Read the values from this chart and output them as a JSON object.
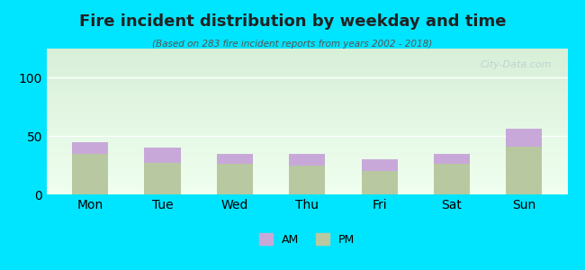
{
  "title": "Fire incident distribution by weekday and time",
  "subtitle": "(Based on 283 fire incident reports from years 2002 - 2018)",
  "categories": [
    "Mon",
    "Tue",
    "Wed",
    "Thu",
    "Fri",
    "Sat",
    "Sun"
  ],
  "pm_values": [
    35,
    27,
    26,
    25,
    20,
    26,
    41
  ],
  "am_values": [
    10,
    13,
    9,
    10,
    10,
    9,
    15
  ],
  "am_color": "#c8a8d8",
  "pm_color": "#b8c8a0",
  "background_top": "#e8f5e8",
  "background_bottom": "#f5fff5",
  "ylim": [
    0,
    125
  ],
  "yticks": [
    0,
    50,
    100
  ],
  "bg_outer": "#00e5ff",
  "legend_am": "AM",
  "legend_pm": "PM",
  "watermark": "City-Data.com"
}
